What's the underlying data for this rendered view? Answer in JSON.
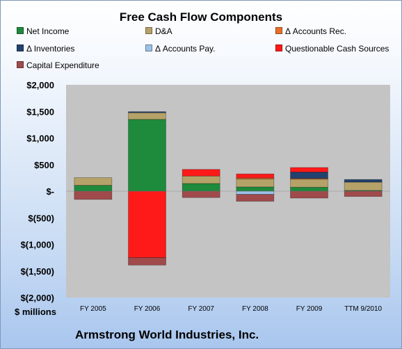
{
  "chart_data": {
    "type": "bar",
    "stacked": true,
    "title": "Free Cash Flow Components",
    "subtitle": "Armstrong World Industries, Inc.",
    "ylabel": "$ millions",
    "xlabel": "",
    "ylim": [
      -2000,
      2000
    ],
    "yticks": [
      "$2,000",
      "$1,500",
      "$1,000",
      "$500",
      "$-",
      "$(500)",
      "$(1,000)",
      "$(1,500)",
      "$(2,000)"
    ],
    "ytick_values": [
      2000,
      1500,
      1000,
      500,
      0,
      -500,
      -1000,
      -1500,
      -2000
    ],
    "grid": false,
    "legend_position": "top",
    "categories": [
      "FY 2005",
      "FY 2006",
      "FY 2007",
      "FY 2008",
      "FY 2009",
      "TTM 9/2010"
    ],
    "series": [
      {
        "name": "Net Income",
        "color": "#1e8a3c",
        "values": [
          110,
          1350,
          145,
          80,
          75,
          15
        ]
      },
      {
        "name": "D&A",
        "color": "#b5a268",
        "values": [
          145,
          125,
          140,
          150,
          150,
          155
        ]
      },
      {
        "name": "Δ Accounts Rec.",
        "color": "#e8702a",
        "values": [
          0,
          0,
          0,
          20,
          15,
          0
        ]
      },
      {
        "name": "Δ Inventories",
        "color": "#23416e",
        "values": [
          0,
          20,
          0,
          0,
          120,
          50
        ]
      },
      {
        "name": "Δ Accounts Pay.",
        "color": "#9dc0e8",
        "values": [
          0,
          0,
          0,
          -60,
          0,
          0
        ]
      },
      {
        "name": "Questionable Cash Sources",
        "color": "#ff1a1a",
        "values": [
          0,
          -1250,
          125,
          75,
          85,
          0
        ]
      },
      {
        "name": "Capital Expenditure",
        "color": "#a04a4c",
        "values": [
          -155,
          -140,
          -120,
          -130,
          -130,
          -100
        ]
      }
    ]
  }
}
